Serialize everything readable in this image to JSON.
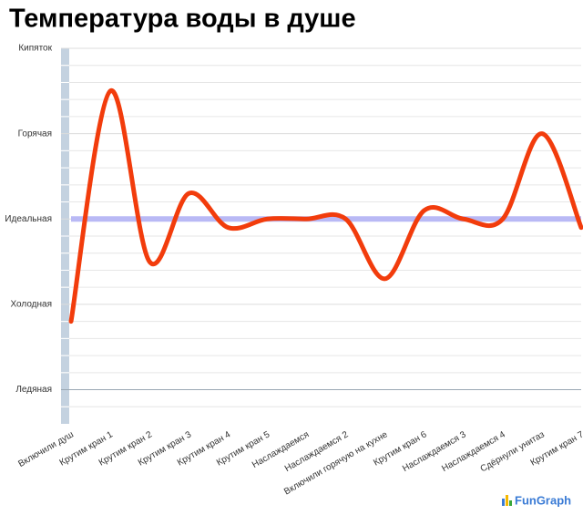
{
  "chart_data": {
    "type": "line",
    "title": "Температура воды в душе",
    "categories": [
      "Включили душ",
      "Крутим кран 1",
      "Крутим кран 2",
      "Крутим кран 3",
      "Крутим кран 4",
      "Крутим кран 5",
      "Наслаждаемся",
      "Наслаждаемся 2",
      "Включили горячую на кухне",
      "Крутим кран 6",
      "Наслаждаемся 3",
      "Наслаждаемся 4",
      "Сдёрнули унитаз",
      "Крутим кран 7"
    ],
    "series": [
      {
        "name": "Температура",
        "color": "#f23c0c",
        "values": [
          0.8,
          3.5,
          1.5,
          2.3,
          1.9,
          2,
          2,
          2,
          1.3,
          2.1,
          2,
          2,
          3,
          1.9
        ]
      }
    ],
    "ylim": [
      -0.4,
      4
    ],
    "yticks": [
      {
        "value": 0,
        "label": "Ледяная"
      },
      {
        "value": 1,
        "label": "Холодная"
      },
      {
        "value": 2,
        "label": "Идеальная"
      },
      {
        "value": 3,
        "label": "Горячая"
      },
      {
        "value": 4,
        "label": "Кипяток"
      }
    ],
    "minor_yticks": [
      -0.2,
      0.2,
      0.4,
      0.6,
      0.8,
      1.2,
      1.4,
      1.6,
      1.8,
      2.2,
      2.4,
      2.6,
      2.8,
      3.2,
      3.4,
      3.6,
      3.8
    ],
    "reference_line": {
      "value": 2,
      "color": "#b9b9f5"
    },
    "grid": true,
    "watermark": "FunGraph"
  }
}
